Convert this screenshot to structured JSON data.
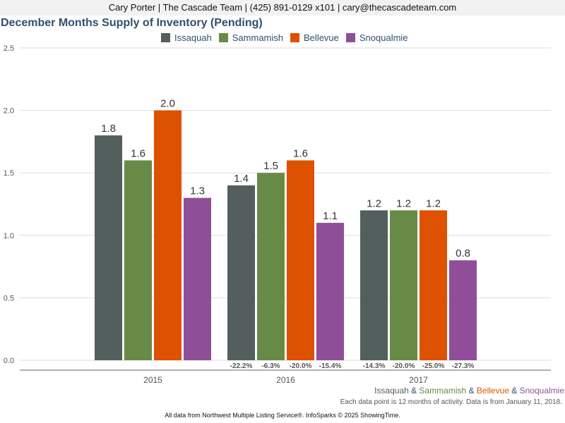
{
  "header": {
    "contact": "Cary Porter | The Cascade Team | (425) 891-0129 x101 | cary@thecascadeteam.com"
  },
  "footer": {
    "note": "Each data point is 12 months of activity. Data is from January 11, 2018.",
    "source": "All data from Northwest Multiple Listing Service®. InfoSparks © 2025 ShowingTime.",
    "amp": "&"
  },
  "chart_data": {
    "type": "bar",
    "title": "December Months Supply of Inventory (Pending)",
    "xlabel": "",
    "ylabel": "",
    "categories": [
      "2015",
      "2016",
      "2017"
    ],
    "ylim": [
      0,
      2.5
    ],
    "yticks": [
      "0.0",
      "0.5",
      "1.0",
      "1.5",
      "2.0",
      "2.5"
    ],
    "grid": true,
    "legend_position": "top",
    "series": [
      {
        "name": "Issaquah",
        "color": "#535f5d",
        "values": [
          1.8,
          1.4,
          1.2
        ],
        "value_labels": [
          "1.8",
          "1.4",
          "1.2"
        ],
        "change_labels": [
          "",
          "-22.2%",
          "-14.3%"
        ]
      },
      {
        "name": "Sammamish",
        "color": "#678b47",
        "values": [
          1.6,
          1.5,
          1.2
        ],
        "value_labels": [
          "1.6",
          "1.5",
          "1.2"
        ],
        "change_labels": [
          "",
          "-6.3%",
          "-20.0%"
        ]
      },
      {
        "name": "Bellevue",
        "color": "#dd5100",
        "values": [
          2.0,
          1.6,
          1.2
        ],
        "value_labels": [
          "2.0",
          "1.6",
          "1.2"
        ],
        "change_labels": [
          "",
          "-20.0%",
          "-25.0%"
        ]
      },
      {
        "name": "Snoqualmie",
        "color": "#8f4f98",
        "values": [
          1.3,
          1.1,
          0.8
        ],
        "value_labels": [
          "1.3",
          "1.1",
          "0.8"
        ],
        "change_labels": [
          "",
          "-15.4%",
          "-27.3%"
        ]
      }
    ]
  }
}
